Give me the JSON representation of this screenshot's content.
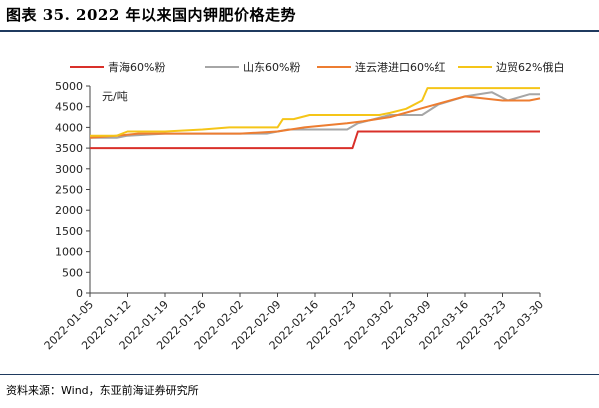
{
  "figure": {
    "title": "图表 35. 2022 年以来国内钾肥价格走势",
    "source": "资料来源：Wind，东亚前海证券研究所"
  },
  "chart_data": {
    "type": "line",
    "title": "",
    "xlabel": "",
    "ylabel": "元/吨",
    "ylim": [
      0,
      5000
    ],
    "yticks": [
      0,
      500,
      1000,
      1500,
      2000,
      2500,
      3000,
      3500,
      4000,
      4500,
      5000
    ],
    "x_start": "2022-01-05",
    "x_end": "2022-03-30",
    "xticks": [
      "2022-01-05",
      "2022-01-12",
      "2022-01-19",
      "2022-01-26",
      "2022-02-02",
      "2022-02-09",
      "2022-02-16",
      "2022-02-23",
      "2022-03-02",
      "2022-03-09",
      "2022-03-16",
      "2022-03-23",
      "2022-03-30"
    ],
    "legend_position": "top",
    "grid": false,
    "series": [
      {
        "name": "青海60%粉",
        "color": "#d9302a",
        "points": [
          [
            "2022-01-05",
            3500
          ],
          [
            "2022-02-23",
            3500
          ],
          [
            "2022-02-24",
            3900
          ],
          [
            "2022-03-30",
            3900
          ]
        ]
      },
      {
        "name": "山东60%粉",
        "color": "#a6a6a6",
        "points": [
          [
            "2022-01-05",
            3750
          ],
          [
            "2022-01-10",
            3750
          ],
          [
            "2022-01-12",
            3800
          ],
          [
            "2022-01-19",
            3850
          ],
          [
            "2022-02-07",
            3850
          ],
          [
            "2022-02-09",
            3900
          ],
          [
            "2022-02-11",
            3950
          ],
          [
            "2022-02-22",
            3950
          ],
          [
            "2022-02-24",
            4100
          ],
          [
            "2022-03-02",
            4300
          ],
          [
            "2022-03-08",
            4300
          ],
          [
            "2022-03-11",
            4550
          ],
          [
            "2022-03-16",
            4750
          ],
          [
            "2022-03-21",
            4850
          ],
          [
            "2022-03-24",
            4650
          ],
          [
            "2022-03-28",
            4800
          ],
          [
            "2022-03-30",
            4800
          ]
        ]
      },
      {
        "name": "连云港进口60%红",
        "color": "#ed7d31",
        "points": [
          [
            "2022-01-05",
            3750
          ],
          [
            "2022-01-10",
            3800
          ],
          [
            "2022-01-14",
            3850
          ],
          [
            "2022-02-02",
            3850
          ],
          [
            "2022-02-09",
            3900
          ],
          [
            "2022-02-14",
            4000
          ],
          [
            "2022-02-22",
            4100
          ],
          [
            "2022-02-25",
            4150
          ],
          [
            "2022-03-02",
            4250
          ],
          [
            "2022-03-09",
            4500
          ],
          [
            "2022-03-16",
            4750
          ],
          [
            "2022-03-23",
            4650
          ],
          [
            "2022-03-28",
            4650
          ],
          [
            "2022-03-30",
            4700
          ]
        ]
      },
      {
        "name": "边贸62%俄白",
        "color": "#f5c518",
        "points": [
          [
            "2022-01-05",
            3800
          ],
          [
            "2022-01-10",
            3800
          ],
          [
            "2022-01-12",
            3900
          ],
          [
            "2022-01-19",
            3900
          ],
          [
            "2022-01-26",
            3950
          ],
          [
            "2022-01-31",
            4000
          ],
          [
            "2022-02-09",
            4000
          ],
          [
            "2022-02-10",
            4200
          ],
          [
            "2022-02-12",
            4200
          ],
          [
            "2022-02-15",
            4300
          ],
          [
            "2022-02-28",
            4300
          ],
          [
            "2022-03-02",
            4350
          ],
          [
            "2022-03-05",
            4450
          ],
          [
            "2022-03-08",
            4650
          ],
          [
            "2022-03-09",
            4950
          ],
          [
            "2022-03-30",
            4950
          ]
        ]
      }
    ]
  }
}
